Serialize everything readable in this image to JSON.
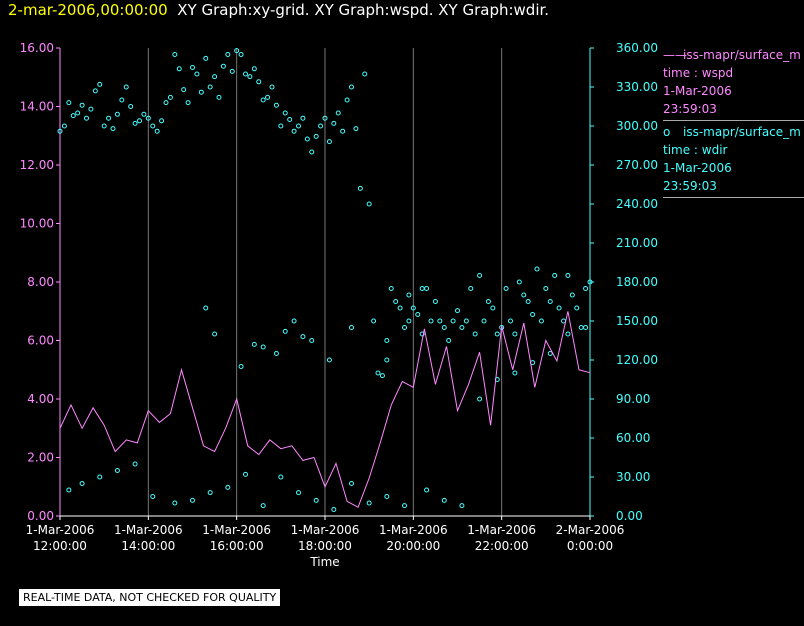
{
  "title": {
    "timestamp": "2-mar-2006,00:00:00",
    "graphs": "XY Graph:xy-grid.  XY Graph:wspd.  XY Graph:wdir."
  },
  "colors": {
    "wspd": "#ff88ff",
    "wdir": "#44ffff",
    "grid": "#777777",
    "text": "#ffffff"
  },
  "legend": [
    {
      "symbol": "——",
      "label": "iss-mapr/surface_m",
      "line2": "time : wspd",
      "line3": "1-Mar-2006",
      "line4": "23:59:03"
    },
    {
      "symbol": "o",
      "label": "iss-mapr/surface_m",
      "line2": "time : wdir",
      "line3": "1-Mar-2006",
      "line4": "23:59:03"
    }
  ],
  "notice": "REAL-TIME DATA, NOT CHECKED FOR QUALITY",
  "chart_data": {
    "type": "line+scatter",
    "xlabel": "Time",
    "x_unit": "hours since 1-Mar-2006 12:00:00",
    "xlim": [
      0,
      12
    ],
    "x_ticks": [
      {
        "x": 0,
        "line1": "1-Mar-2006",
        "line2": "12:00:00"
      },
      {
        "x": 2,
        "line1": "1-Mar-2006",
        "line2": "14:00:00"
      },
      {
        "x": 4,
        "line1": "1-Mar-2006",
        "line2": "16:00:00"
      },
      {
        "x": 6,
        "line1": "1-Mar-2006",
        "line2": "18:00:00"
      },
      {
        "x": 8,
        "line1": "1-Mar-2006",
        "line2": "20:00:00"
      },
      {
        "x": 10,
        "line1": "1-Mar-2006",
        "line2": "22:00:00"
      },
      {
        "x": 12,
        "line1": "2-Mar-2006",
        "line2": "0:00:00"
      }
    ],
    "y_left": {
      "name": "wspd",
      "lim": [
        0,
        16
      ],
      "ticks": [
        "0.00",
        "2.00",
        "4.00",
        "6.00",
        "8.00",
        "10.00",
        "12.00",
        "14.00",
        "16.00"
      ]
    },
    "y_right": {
      "name": "wdir",
      "lim": [
        0,
        360
      ],
      "ticks": [
        "0.00",
        "30.00",
        "60.00",
        "90.00",
        "120.00",
        "150.00",
        "180.00",
        "210.00",
        "240.00",
        "270.00",
        "300.00",
        "330.00",
        "360.00"
      ]
    },
    "series": [
      {
        "name": "wspd",
        "style": "line",
        "axis": "left",
        "x": [
          0,
          0.25,
          0.5,
          0.75,
          1,
          1.25,
          1.5,
          1.75,
          2,
          2.25,
          2.5,
          2.75,
          3,
          3.25,
          3.5,
          3.75,
          4,
          4.25,
          4.5,
          4.75,
          5,
          5.25,
          5.5,
          5.75,
          6,
          6.25,
          6.5,
          6.75,
          7,
          7.25,
          7.5,
          7.75,
          8,
          8.25,
          8.5,
          8.75,
          9,
          9.25,
          9.5,
          9.75,
          10,
          10.25,
          10.5,
          10.75,
          11,
          11.25,
          11.5,
          11.75,
          12
        ],
        "values": [
          3.0,
          3.8,
          3.0,
          3.7,
          3.1,
          2.2,
          2.6,
          2.5,
          3.6,
          3.2,
          3.5,
          5.0,
          3.7,
          2.4,
          2.2,
          3.0,
          4.0,
          2.4,
          2.1,
          2.6,
          2.3,
          2.4,
          1.9,
          2.0,
          1.0,
          1.8,
          0.5,
          0.3,
          1.3,
          2.5,
          3.8,
          4.6,
          4.4,
          6.4,
          4.5,
          5.8,
          3.6,
          4.5,
          5.6,
          3.1,
          6.5,
          5.0,
          6.6,
          4.4,
          6.0,
          5.3,
          7.0,
          5.0,
          4.9
        ]
      },
      {
        "name": "wdir",
        "style": "markers",
        "axis": "right",
        "x": [
          0,
          0.1,
          0.2,
          0.3,
          0.4,
          0.5,
          0.6,
          0.7,
          0.8,
          0.9,
          1.0,
          1.1,
          1.2,
          1.3,
          1.4,
          1.5,
          1.6,
          1.7,
          1.8,
          1.9,
          2.0,
          2.1,
          2.2,
          2.3,
          2.4,
          2.5,
          2.6,
          2.7,
          2.8,
          2.9,
          3.0,
          3.1,
          3.2,
          3.3,
          3.4,
          3.5,
          3.6,
          3.7,
          3.8,
          3.9,
          4.0,
          4.1,
          4.2,
          4.3,
          4.4,
          4.5,
          4.6,
          4.7,
          4.8,
          4.9,
          5.0,
          5.1,
          5.2,
          5.3,
          5.4,
          5.5,
          5.6,
          5.7,
          5.8,
          5.9,
          6.0,
          6.1,
          6.2,
          6.3,
          6.4,
          6.5,
          6.6,
          6.7,
          6.8,
          6.9,
          7.0,
          7.1,
          7.2,
          7.3,
          7.4,
          7.5,
          7.6,
          7.7,
          7.8,
          7.9,
          8.0,
          8.1,
          8.2,
          8.3,
          8.4,
          8.5,
          8.6,
          8.7,
          8.8,
          8.9,
          9.0,
          9.1,
          9.2,
          9.3,
          9.4,
          9.5,
          9.6,
          9.7,
          9.8,
          9.9,
          10.0,
          10.1,
          10.2,
          10.3,
          10.4,
          10.5,
          10.6,
          10.7,
          10.8,
          10.9,
          11.0,
          11.1,
          11.2,
          11.3,
          11.4,
          11.5,
          11.6,
          11.7,
          11.8,
          11.9,
          12.0,
          0.2,
          0.5,
          0.9,
          1.3,
          1.7,
          2.1,
          2.6,
          3.0,
          3.4,
          3.8,
          4.2,
          4.6,
          5.0,
          5.4,
          5.8,
          6.2,
          6.6,
          7.0,
          7.4,
          7.8,
          8.3,
          8.7,
          9.1,
          9.5,
          9.9,
          10.3,
          10.7,
          11.1,
          11.5,
          11.9,
          3.3,
          3.5,
          4.1,
          4.4,
          4.6,
          4.9,
          5.1,
          5.3,
          5.5,
          5.7,
          6.1,
          6.6,
          7.4,
          7.9,
          8.2
        ],
        "values": [
          296,
          300,
          318,
          308,
          310,
          316,
          306,
          313,
          327,
          332,
          300,
          306,
          298,
          309,
          320,
          330,
          315,
          302,
          304,
          309,
          306,
          300,
          296,
          304,
          318,
          322,
          355,
          344,
          328,
          318,
          345,
          340,
          326,
          352,
          330,
          338,
          322,
          346,
          355,
          342,
          358,
          355,
          340,
          338,
          344,
          334,
          320,
          322,
          330,
          316,
          300,
          310,
          305,
          296,
          300,
          306,
          290,
          280,
          292,
          300,
          306,
          288,
          302,
          310,
          296,
          320,
          330,
          298,
          252,
          340,
          240,
          150,
          110,
          108,
          120,
          175,
          165,
          160,
          145,
          150,
          160,
          155,
          140,
          175,
          150,
          165,
          150,
          145,
          135,
          150,
          158,
          145,
          150,
          175,
          140,
          185,
          150,
          165,
          160,
          140,
          145,
          175,
          150,
          140,
          180,
          170,
          165,
          155,
          190,
          150,
          175,
          165,
          185,
          160,
          150,
          185,
          170,
          160,
          145,
          175,
          180,
          20,
          25,
          30,
          35,
          40,
          15,
          10,
          12,
          18,
          22,
          32,
          8,
          30,
          18,
          12,
          5,
          25,
          10,
          15,
          8,
          20,
          12,
          8,
          90,
          105,
          110,
          118,
          125,
          140,
          145,
          160,
          140,
          115,
          132,
          130,
          125,
          142,
          150,
          138,
          135,
          120,
          145,
          135,
          170,
          175
        ]
      }
    ]
  }
}
